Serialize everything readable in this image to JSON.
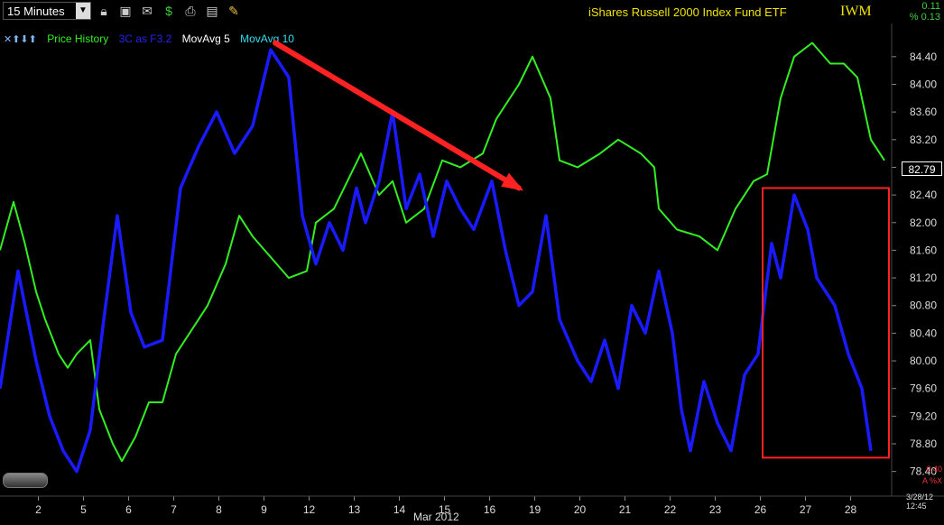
{
  "toolbar": {
    "interval": "15 Minutes",
    "fund_name": "iShares Russell 2000 Index Fund ETF",
    "symbol": "IWM",
    "change": "0.11",
    "change_pct": "% 0.13",
    "icons": [
      "dropdown-icon",
      "lock-icon",
      "save-icon",
      "mail-icon",
      "dollar-icon",
      "print-icon",
      "card-icon",
      "pencil-icon"
    ]
  },
  "legend": {
    "arrows": "✕⬆⬇⬆",
    "price_history": "Price History",
    "indicator": "3C as F3.2",
    "ma5": "MovAvg 5",
    "ma10": "MovAvg 10"
  },
  "colors": {
    "price": "#33ee22",
    "indicator": "#1a1aff",
    "annotation": "#ff2222",
    "axis_text": "#dddddd"
  },
  "status": {
    "timestamp": "3/28/12 12:45",
    "month": "Mar 2012",
    "price_badge": "82.79",
    "sub_value": "0.40",
    "sub_flags": "A %X"
  },
  "chart_data": {
    "type": "line",
    "title": "iShares Russell 2000 Index Fund ETF",
    "x_ticks": [
      "2",
      "5",
      "6",
      "7",
      "8",
      "9",
      "12",
      "13",
      "14",
      "15",
      "16",
      "19",
      "20",
      "21",
      "22",
      "23",
      "26",
      "27",
      "28"
    ],
    "y_ticks": [
      84.4,
      84.0,
      83.6,
      83.2,
      82.8,
      82.4,
      82.0,
      81.6,
      81.2,
      80.8,
      80.4,
      80.0,
      79.6,
      79.2,
      78.8,
      78.4
    ],
    "ylim": [
      78.2,
      84.75
    ],
    "current_price": 82.79,
    "series": [
      {
        "name": "Price History",
        "color": "#33ee22",
        "points": [
          [
            0,
            81.6
          ],
          [
            0.3,
            82.3
          ],
          [
            0.55,
            81.7
          ],
          [
            0.8,
            81.0
          ],
          [
            1.0,
            80.6
          ],
          [
            1.3,
            80.1
          ],
          [
            1.5,
            79.9
          ],
          [
            1.7,
            80.1
          ],
          [
            2.0,
            80.3
          ],
          [
            2.2,
            79.3
          ],
          [
            2.5,
            78.8
          ],
          [
            2.7,
            78.55
          ],
          [
            3.0,
            78.9
          ],
          [
            3.3,
            79.4
          ],
          [
            3.6,
            79.4
          ],
          [
            3.9,
            80.1
          ],
          [
            4.2,
            80.4
          ],
          [
            4.6,
            80.8
          ],
          [
            5.0,
            81.4
          ],
          [
            5.3,
            82.1
          ],
          [
            5.6,
            81.8
          ],
          [
            6.0,
            81.5
          ],
          [
            6.4,
            81.2
          ],
          [
            6.8,
            81.3
          ],
          [
            7.0,
            82.0
          ],
          [
            7.4,
            82.2
          ],
          [
            8.0,
            83.0
          ],
          [
            8.4,
            82.4
          ],
          [
            8.7,
            82.6
          ],
          [
            9.0,
            82.0
          ],
          [
            9.4,
            82.2
          ],
          [
            9.8,
            82.9
          ],
          [
            10.2,
            82.8
          ],
          [
            10.7,
            83.0
          ],
          [
            11.0,
            83.5
          ],
          [
            11.5,
            84.0
          ],
          [
            11.8,
            84.4
          ],
          [
            12.2,
            83.8
          ],
          [
            12.4,
            82.9
          ],
          [
            12.8,
            82.8
          ],
          [
            13.3,
            83.0
          ],
          [
            13.7,
            83.2
          ],
          [
            14.2,
            83.0
          ],
          [
            14.5,
            82.8
          ],
          [
            14.6,
            82.2
          ],
          [
            15.0,
            81.9
          ],
          [
            15.5,
            81.8
          ],
          [
            15.9,
            81.6
          ],
          [
            16.3,
            82.2
          ],
          [
            16.7,
            82.6
          ],
          [
            17.0,
            82.7
          ],
          [
            17.3,
            83.8
          ],
          [
            17.6,
            84.4
          ],
          [
            18.0,
            84.6
          ],
          [
            18.4,
            84.3
          ],
          [
            18.7,
            84.3
          ],
          [
            19.0,
            84.1
          ],
          [
            19.3,
            83.2
          ],
          [
            19.6,
            82.9
          ]
        ]
      },
      {
        "name": "3C as F3.2",
        "color": "#1a1aff",
        "points": [
          [
            0,
            79.6
          ],
          [
            0.4,
            81.3
          ],
          [
            0.8,
            80.0
          ],
          [
            1.1,
            79.2
          ],
          [
            1.4,
            78.7
          ],
          [
            1.7,
            78.4
          ],
          [
            2.0,
            79.0
          ],
          [
            2.3,
            80.6
          ],
          [
            2.6,
            82.1
          ],
          [
            2.9,
            80.7
          ],
          [
            3.2,
            80.2
          ],
          [
            3.6,
            80.3
          ],
          [
            4.0,
            82.5
          ],
          [
            4.4,
            83.1
          ],
          [
            4.8,
            83.6
          ],
          [
            5.2,
            83.0
          ],
          [
            5.6,
            83.4
          ],
          [
            6.0,
            84.5
          ],
          [
            6.4,
            84.1
          ],
          [
            6.7,
            82.1
          ],
          [
            7.0,
            81.4
          ],
          [
            7.3,
            82.0
          ],
          [
            7.6,
            81.6
          ],
          [
            7.9,
            82.5
          ],
          [
            8.1,
            82.0
          ],
          [
            8.4,
            82.6
          ],
          [
            8.7,
            83.6
          ],
          [
            9.0,
            82.2
          ],
          [
            9.3,
            82.7
          ],
          [
            9.6,
            81.8
          ],
          [
            9.9,
            82.6
          ],
          [
            10.2,
            82.2
          ],
          [
            10.5,
            81.9
          ],
          [
            10.9,
            82.6
          ],
          [
            11.2,
            81.6
          ],
          [
            11.5,
            80.8
          ],
          [
            11.8,
            81.0
          ],
          [
            12.1,
            82.1
          ],
          [
            12.4,
            80.6
          ],
          [
            12.8,
            80.0
          ],
          [
            13.1,
            79.7
          ],
          [
            13.4,
            80.3
          ],
          [
            13.7,
            79.6
          ],
          [
            14.0,
            80.8
          ],
          [
            14.3,
            80.4
          ],
          [
            14.6,
            81.3
          ],
          [
            14.9,
            80.4
          ],
          [
            15.1,
            79.3
          ],
          [
            15.3,
            78.7
          ],
          [
            15.6,
            79.7
          ],
          [
            15.9,
            79.1
          ],
          [
            16.2,
            78.7
          ],
          [
            16.5,
            79.8
          ],
          [
            16.8,
            80.1
          ],
          [
            17.1,
            81.7
          ],
          [
            17.3,
            81.2
          ],
          [
            17.6,
            82.4
          ],
          [
            17.9,
            81.9
          ],
          [
            18.1,
            81.2
          ],
          [
            18.5,
            80.8
          ],
          [
            18.8,
            80.1
          ],
          [
            19.1,
            79.6
          ],
          [
            19.3,
            78.7
          ]
        ]
      }
    ],
    "annotations": [
      {
        "type": "arrow",
        "from": [
          6.1,
          84.6
        ],
        "to": [
          11.5,
          82.5
        ]
      },
      {
        "type": "box",
        "x0": 16.9,
        "x1": 19.7,
        "y0": 78.6,
        "y1": 82.5
      }
    ],
    "grid": false
  }
}
